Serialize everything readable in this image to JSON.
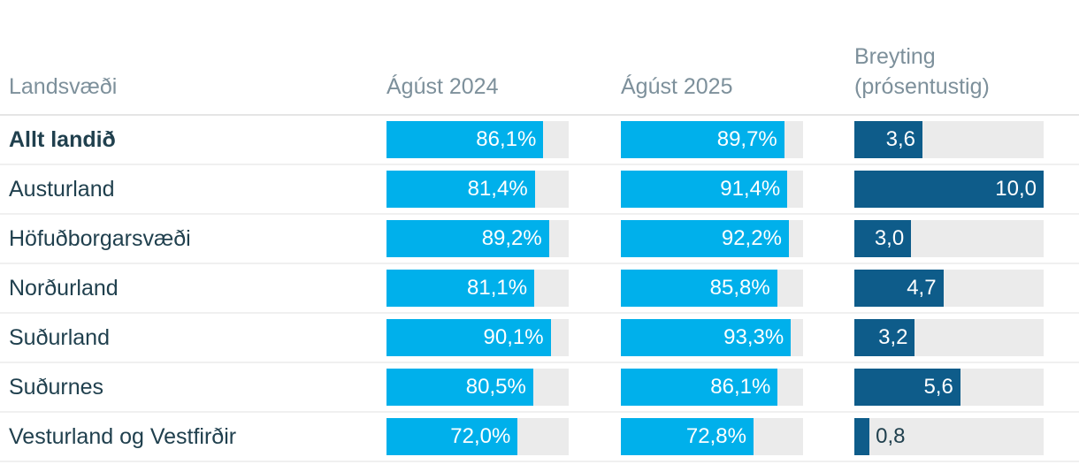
{
  "table": {
    "columns": [
      {
        "label": "Landsvæði"
      },
      {
        "label": "Ágúst 2024"
      },
      {
        "label": "Ágúst 2025"
      },
      {
        "line1": "Breyting",
        "line2": "(prósentustig)"
      }
    ]
  },
  "chart_data": {
    "type": "bar",
    "orientation": "horizontal",
    "title": "",
    "categories": [
      "Allt landið",
      "Austurland",
      "Höfuðborgarsvæði",
      "Norðurland",
      "Suðurland",
      "Suðurnes",
      "Vesturland og Vestfirðir"
    ],
    "bold_categories": [
      "Allt landið"
    ],
    "series": [
      {
        "name": "Ágúst 2024",
        "unit": "%",
        "max": 100,
        "values": [
          86.1,
          81.4,
          89.2,
          81.1,
          90.1,
          80.5,
          72.0
        ],
        "display": [
          "86,1%",
          "81,4%",
          "89,2%",
          "81,1%",
          "90,1%",
          "80,5%",
          "72,0%"
        ],
        "bar_color": "#00b0eb"
      },
      {
        "name": "Ágúst 2025",
        "unit": "%",
        "max": 100,
        "values": [
          89.7,
          91.4,
          92.2,
          85.8,
          93.3,
          86.1,
          72.8
        ],
        "display": [
          "89,7%",
          "91,4%",
          "92,2%",
          "85,8%",
          "93,3%",
          "86,1%",
          "72,8%"
        ],
        "bar_color": "#0e5c8a"
      },
      {
        "name": "Breyting (prósentustig)",
        "unit": "prósentustig",
        "max": 10,
        "values": [
          3.6,
          10.0,
          3.0,
          4.7,
          3.2,
          5.6,
          0.8
        ],
        "display": [
          "3,6",
          "10,0",
          "3,0",
          "4,7",
          "3,2",
          "5,6",
          "0,8"
        ],
        "bar_color": "#0e5c8a"
      }
    ],
    "legend_position": "none",
    "grid": false
  },
  "colors": {
    "bar_primary": "#00b0eb",
    "bar_change": "#0e5c8a",
    "track": "#ebebeb",
    "header_text": "#7d909b",
    "label_text": "#20404e",
    "divider": "#f0f0f0",
    "divider_strong": "#e5e5e5",
    "background": "#ffffff"
  }
}
